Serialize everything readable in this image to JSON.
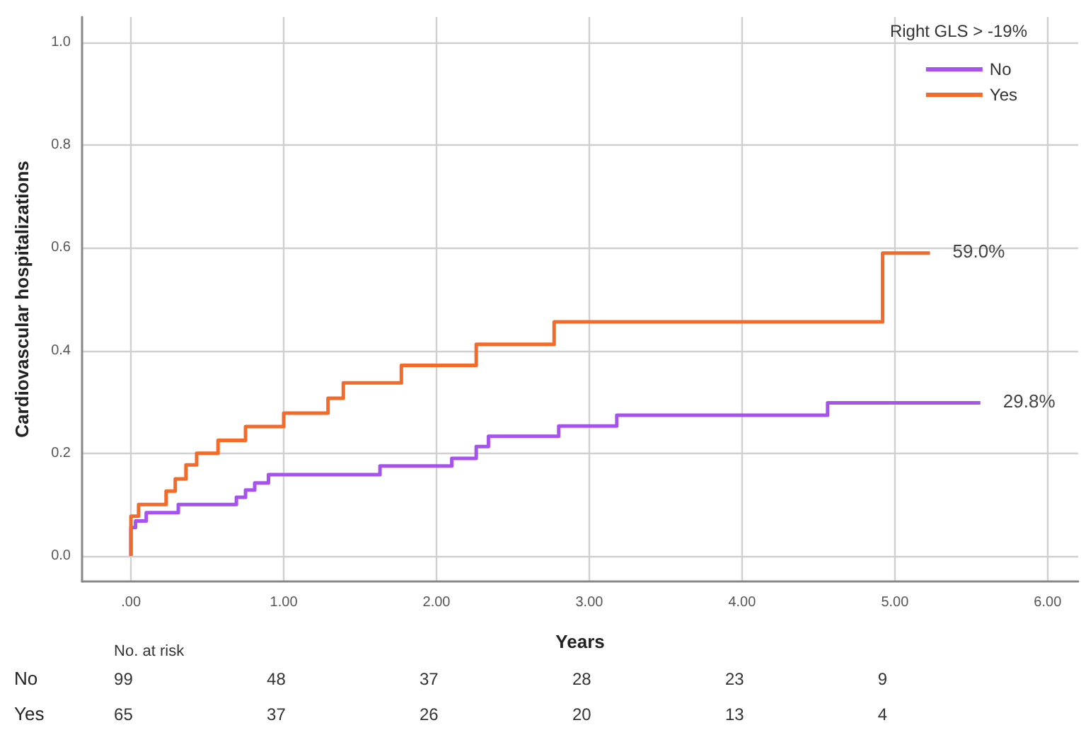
{
  "chart_data": {
    "type": "step",
    "xlabel": "Years",
    "ylabel": "Cardiovascular hospitalizations",
    "legend_title": "Right GLS > -19%",
    "xlim": [
      -0.32,
      6.2
    ],
    "ylim": [
      -0.05,
      1.05
    ],
    "xticks": [
      {
        "value": 0,
        "label": ".00"
      },
      {
        "value": 1,
        "label": "1.00"
      },
      {
        "value": 2,
        "label": "2.00"
      },
      {
        "value": 3,
        "label": "3.00"
      },
      {
        "value": 4,
        "label": "4.00"
      },
      {
        "value": 5,
        "label": "5.00"
      },
      {
        "value": 6,
        "label": "6.00"
      }
    ],
    "yticks": [
      {
        "value": 0,
        "label": "0.0"
      },
      0.2,
      0.4,
      0.6,
      0.8,
      {
        "value": 1,
        "label": "1.0"
      }
    ],
    "grid": true,
    "legend": "top right",
    "marker": "none",
    "line_style": "solid",
    "series": [
      {
        "name": "No",
        "color": "#a552ee",
        "x": [
          0,
          0,
          0.03,
          0.1,
          0.31,
          0.69,
          0.75,
          0.81,
          0.9,
          1.63,
          2.1,
          2.26,
          2.34,
          2.8,
          3.18,
          4.56,
          5.56
        ],
        "values": [
          0,
          0.055,
          0.068,
          0.084,
          0.1,
          0.114,
          0.128,
          0.142,
          0.158,
          0.175,
          0.19,
          0.213,
          0.233,
          0.253,
          0.274,
          0.298,
          0.298
        ]
      },
      {
        "name": "Yes",
        "color": "#f26b2a",
        "x": [
          0,
          0,
          0.05,
          0.23,
          0.29,
          0.36,
          0.43,
          0.57,
          0.75,
          1.0,
          1.29,
          1.39,
          1.77,
          2.26,
          2.77,
          4.92,
          5.23
        ],
        "values": [
          0,
          0.077,
          0.1,
          0.126,
          0.15,
          0.177,
          0.2,
          0.225,
          0.252,
          0.278,
          0.307,
          0.337,
          0.371,
          0.412,
          0.456,
          0.59,
          0.59
        ]
      }
    ],
    "annotations": [
      {
        "text": "59.0%",
        "x": 5.23,
        "y": 0.59
      },
      {
        "text": "29.8%",
        "x": 5.56,
        "y": 0.298
      },
      "No. at risk",
      "No",
      "99",
      "48",
      "37",
      "28",
      "23",
      "9",
      "Yes",
      "65",
      "37",
      "26",
      "20",
      "13",
      "4"
    ]
  }
}
